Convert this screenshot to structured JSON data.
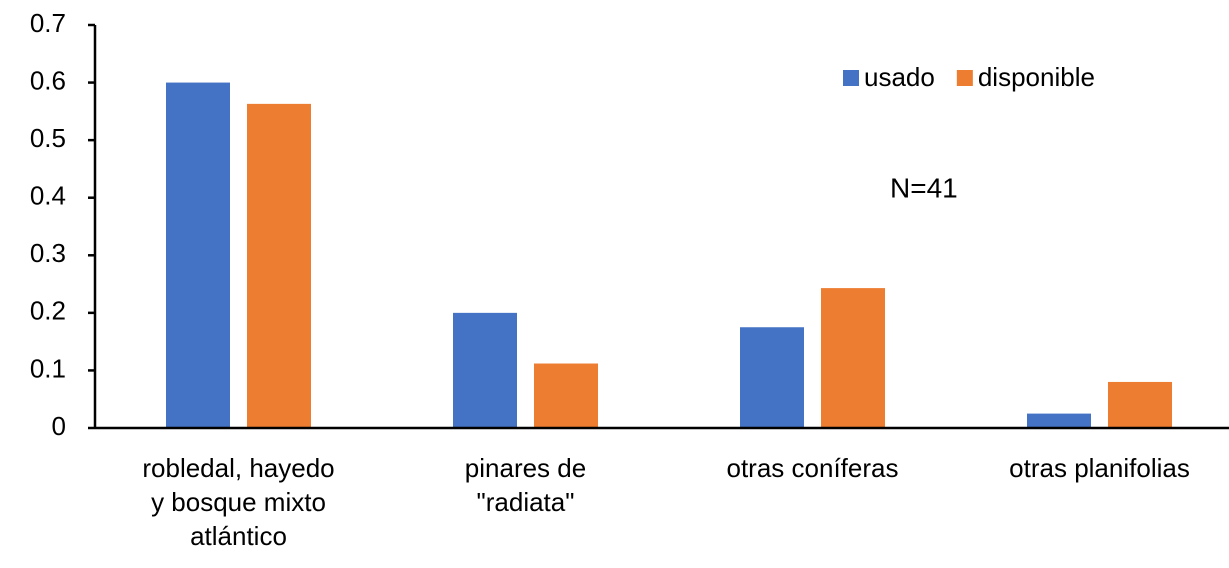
{
  "chart_data": {
    "type": "bar",
    "categories": [
      "robledal, hayedo\ny bosque mixto\natlántico",
      "pinares de\n\"radiata\"",
      "otras coníferas",
      "otras planifolias"
    ],
    "series": [
      {
        "name": "usado",
        "color": "#4472c4",
        "values": [
          0.6,
          0.2,
          0.175,
          0.025
        ]
      },
      {
        "name": "disponible",
        "color": "#ed7d31",
        "values": [
          0.563,
          0.112,
          0.243,
          0.08
        ]
      }
    ],
    "ylim": [
      0,
      0.7
    ],
    "yticks": [
      0,
      0.1,
      0.2,
      0.3,
      0.4,
      0.5,
      0.6,
      0.7
    ],
    "annotation": "N=41",
    "legend": "top-right"
  }
}
